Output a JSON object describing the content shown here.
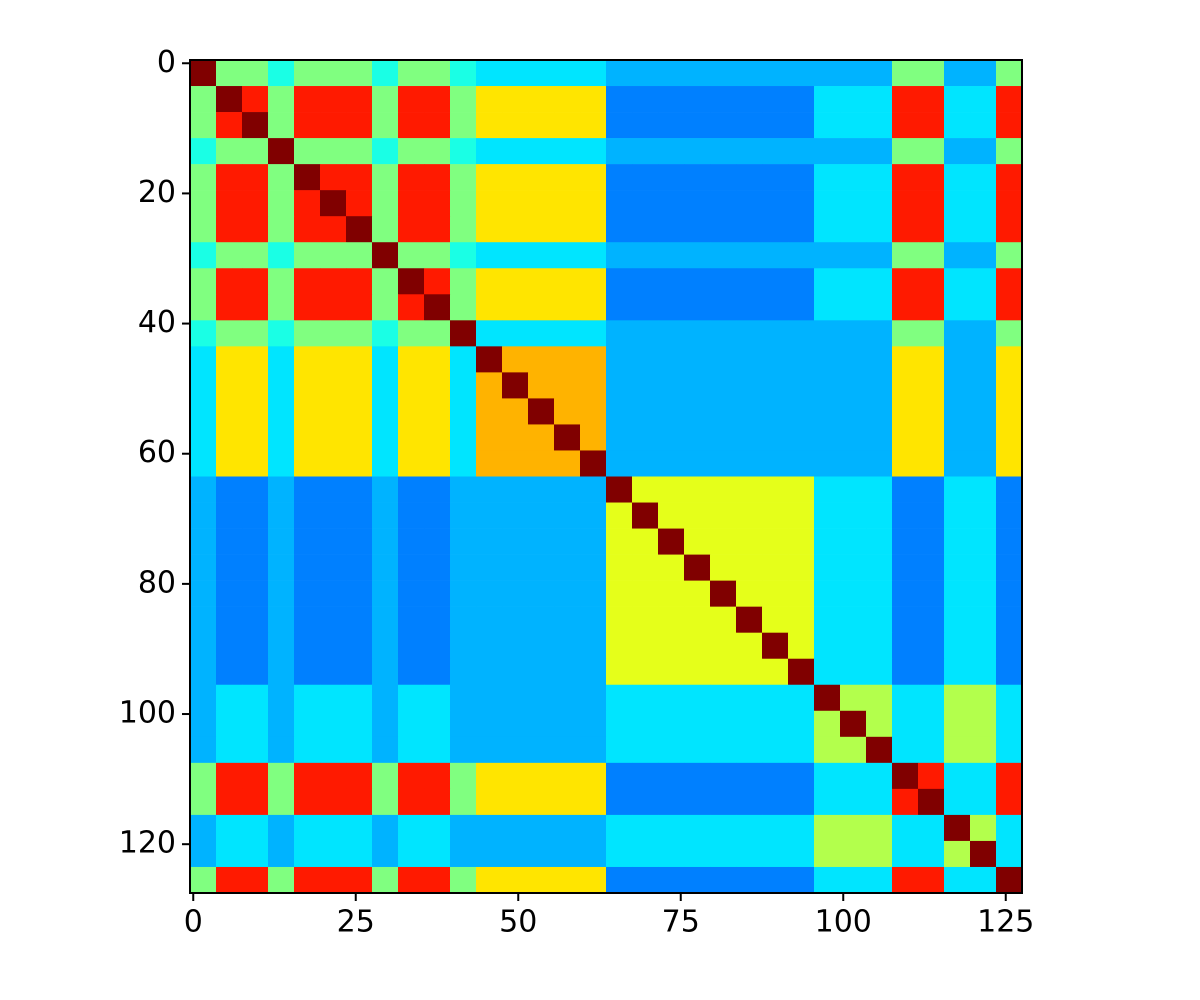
{
  "chart_data": {
    "type": "heatmap",
    "colormap": "jet",
    "vmin": 0,
    "vmax": 1,
    "xlim": [
      -0.5,
      127.5
    ],
    "ylim": [
      127.5,
      -0.5
    ],
    "xticks": [
      0,
      25,
      50,
      75,
      100,
      125
    ],
    "yticks": [
      0,
      20,
      40,
      60,
      80,
      100,
      120
    ],
    "z": [
      [
        1,
        0.5,
        0.5,
        0.4,
        0.5,
        0.5,
        0.5,
        0.4,
        0.5,
        0.5,
        0.4,
        0.35,
        0.35,
        0.35,
        0.35,
        0.35,
        0.3,
        0.3,
        0.3,
        0.3,
        0.3,
        0.3,
        0.3,
        0.3,
        0.3,
        0.3,
        0.3,
        0.5,
        0.5,
        0.3,
        0.3,
        0.5
      ],
      [
        0.5,
        1,
        0.85,
        0.5,
        0.85,
        0.85,
        0.85,
        0.5,
        0.85,
        0.85,
        0.5,
        0.65,
        0.65,
        0.65,
        0.65,
        0.65,
        0.25,
        0.25,
        0.25,
        0.25,
        0.25,
        0.25,
        0.25,
        0.25,
        0.35,
        0.35,
        0.35,
        0.85,
        0.85,
        0.35,
        0.35,
        0.85
      ],
      [
        0.5,
        0.85,
        1,
        0.5,
        0.85,
        0.85,
        0.85,
        0.5,
        0.85,
        0.85,
        0.5,
        0.65,
        0.65,
        0.65,
        0.65,
        0.65,
        0.25,
        0.25,
        0.25,
        0.25,
        0.25,
        0.25,
        0.25,
        0.25,
        0.35,
        0.35,
        0.35,
        0.85,
        0.85,
        0.35,
        0.35,
        0.85
      ],
      [
        0.4,
        0.5,
        0.5,
        1,
        0.5,
        0.5,
        0.5,
        0.4,
        0.5,
        0.5,
        0.4,
        0.35,
        0.35,
        0.35,
        0.35,
        0.35,
        0.3,
        0.3,
        0.3,
        0.3,
        0.3,
        0.3,
        0.3,
        0.3,
        0.3,
        0.3,
        0.3,
        0.5,
        0.5,
        0.3,
        0.3,
        0.5
      ],
      [
        0.5,
        0.85,
        0.85,
        0.5,
        1,
        0.85,
        0.85,
        0.5,
        0.85,
        0.85,
        0.5,
        0.65,
        0.65,
        0.65,
        0.65,
        0.65,
        0.25,
        0.25,
        0.25,
        0.25,
        0.25,
        0.25,
        0.25,
        0.25,
        0.35,
        0.35,
        0.35,
        0.85,
        0.85,
        0.35,
        0.35,
        0.85
      ],
      [
        0.5,
        0.85,
        0.85,
        0.5,
        0.85,
        1,
        0.85,
        0.5,
        0.85,
        0.85,
        0.5,
        0.65,
        0.65,
        0.65,
        0.65,
        0.65,
        0.25,
        0.25,
        0.25,
        0.25,
        0.25,
        0.25,
        0.25,
        0.25,
        0.35,
        0.35,
        0.35,
        0.85,
        0.85,
        0.35,
        0.35,
        0.85
      ],
      [
        0.5,
        0.85,
        0.85,
        0.5,
        0.85,
        0.85,
        1,
        0.5,
        0.85,
        0.85,
        0.5,
        0.65,
        0.65,
        0.65,
        0.65,
        0.65,
        0.25,
        0.25,
        0.25,
        0.25,
        0.25,
        0.25,
        0.25,
        0.25,
        0.35,
        0.35,
        0.35,
        0.85,
        0.85,
        0.35,
        0.35,
        0.85
      ],
      [
        0.4,
        0.5,
        0.5,
        0.4,
        0.5,
        0.5,
        0.5,
        1,
        0.5,
        0.5,
        0.4,
        0.35,
        0.35,
        0.35,
        0.35,
        0.35,
        0.3,
        0.3,
        0.3,
        0.3,
        0.3,
        0.3,
        0.3,
        0.3,
        0.3,
        0.3,
        0.3,
        0.5,
        0.5,
        0.3,
        0.3,
        0.5
      ],
      [
        0.5,
        0.85,
        0.85,
        0.5,
        0.85,
        0.85,
        0.85,
        0.5,
        1,
        0.85,
        0.5,
        0.65,
        0.65,
        0.65,
        0.65,
        0.65,
        0.25,
        0.25,
        0.25,
        0.25,
        0.25,
        0.25,
        0.25,
        0.25,
        0.35,
        0.35,
        0.35,
        0.85,
        0.85,
        0.35,
        0.35,
        0.85
      ],
      [
        0.5,
        0.85,
        0.85,
        0.5,
        0.85,
        0.85,
        0.85,
        0.5,
        0.85,
        1,
        0.5,
        0.65,
        0.65,
        0.65,
        0.65,
        0.65,
        0.25,
        0.25,
        0.25,
        0.25,
        0.25,
        0.25,
        0.25,
        0.25,
        0.35,
        0.35,
        0.35,
        0.85,
        0.85,
        0.35,
        0.35,
        0.85
      ],
      [
        0.4,
        0.5,
        0.5,
        0.4,
        0.5,
        0.5,
        0.5,
        0.4,
        0.5,
        0.5,
        1,
        0.35,
        0.35,
        0.35,
        0.35,
        0.35,
        0.3,
        0.3,
        0.3,
        0.3,
        0.3,
        0.3,
        0.3,
        0.3,
        0.3,
        0.3,
        0.3,
        0.5,
        0.5,
        0.3,
        0.3,
        0.5
      ],
      [
        0.35,
        0.65,
        0.65,
        0.35,
        0.65,
        0.65,
        0.65,
        0.35,
        0.65,
        0.65,
        0.35,
        1,
        0.7,
        0.7,
        0.7,
        0.7,
        0.3,
        0.3,
        0.3,
        0.3,
        0.3,
        0.3,
        0.3,
        0.3,
        0.3,
        0.3,
        0.3,
        0.65,
        0.65,
        0.3,
        0.3,
        0.65
      ],
      [
        0.35,
        0.65,
        0.65,
        0.35,
        0.65,
        0.65,
        0.65,
        0.35,
        0.65,
        0.65,
        0.35,
        0.7,
        1,
        0.7,
        0.7,
        0.7,
        0.3,
        0.3,
        0.3,
        0.3,
        0.3,
        0.3,
        0.3,
        0.3,
        0.3,
        0.3,
        0.3,
        0.65,
        0.65,
        0.3,
        0.3,
        0.65
      ],
      [
        0.35,
        0.65,
        0.65,
        0.35,
        0.65,
        0.65,
        0.65,
        0.35,
        0.65,
        0.65,
        0.35,
        0.7,
        0.7,
        1,
        0.7,
        0.7,
        0.3,
        0.3,
        0.3,
        0.3,
        0.3,
        0.3,
        0.3,
        0.3,
        0.3,
        0.3,
        0.3,
        0.65,
        0.65,
        0.3,
        0.3,
        0.65
      ],
      [
        0.35,
        0.65,
        0.65,
        0.35,
        0.65,
        0.65,
        0.65,
        0.35,
        0.65,
        0.65,
        0.35,
        0.7,
        0.7,
        0.7,
        1,
        0.7,
        0.3,
        0.3,
        0.3,
        0.3,
        0.3,
        0.3,
        0.3,
        0.3,
        0.3,
        0.3,
        0.3,
        0.65,
        0.65,
        0.3,
        0.3,
        0.65
      ],
      [
        0.35,
        0.65,
        0.65,
        0.35,
        0.65,
        0.65,
        0.65,
        0.35,
        0.65,
        0.65,
        0.35,
        0.7,
        0.7,
        0.7,
        0.7,
        1,
        0.3,
        0.3,
        0.3,
        0.3,
        0.3,
        0.3,
        0.3,
        0.3,
        0.3,
        0.3,
        0.3,
        0.65,
        0.65,
        0.3,
        0.3,
        0.65
      ],
      [
        0.3,
        0.25,
        0.25,
        0.3,
        0.25,
        0.25,
        0.25,
        0.3,
        0.25,
        0.25,
        0.3,
        0.3,
        0.3,
        0.3,
        0.3,
        0.3,
        1,
        0.6,
        0.6,
        0.6,
        0.6,
        0.6,
        0.6,
        0.6,
        0.35,
        0.35,
        0.35,
        0.25,
        0.25,
        0.35,
        0.35,
        0.25
      ],
      [
        0.3,
        0.25,
        0.25,
        0.3,
        0.25,
        0.25,
        0.25,
        0.3,
        0.25,
        0.25,
        0.3,
        0.3,
        0.3,
        0.3,
        0.3,
        0.3,
        0.6,
        1,
        0.6,
        0.6,
        0.6,
        0.6,
        0.6,
        0.6,
        0.35,
        0.35,
        0.35,
        0.25,
        0.25,
        0.35,
        0.35,
        0.25
      ],
      [
        0.3,
        0.25,
        0.25,
        0.3,
        0.25,
        0.25,
        0.25,
        0.3,
        0.25,
        0.25,
        0.3,
        0.3,
        0.3,
        0.3,
        0.3,
        0.3,
        0.6,
        0.6,
        1,
        0.6,
        0.6,
        0.6,
        0.6,
        0.6,
        0.35,
        0.35,
        0.35,
        0.25,
        0.25,
        0.35,
        0.35,
        0.25
      ],
      [
        0.3,
        0.25,
        0.25,
        0.3,
        0.25,
        0.25,
        0.25,
        0.3,
        0.25,
        0.25,
        0.3,
        0.3,
        0.3,
        0.3,
        0.3,
        0.3,
        0.6,
        0.6,
        0.6,
        1,
        0.6,
        0.6,
        0.6,
        0.6,
        0.35,
        0.35,
        0.35,
        0.25,
        0.25,
        0.35,
        0.35,
        0.25
      ],
      [
        0.3,
        0.25,
        0.25,
        0.3,
        0.25,
        0.25,
        0.25,
        0.3,
        0.25,
        0.25,
        0.3,
        0.3,
        0.3,
        0.3,
        0.3,
        0.3,
        0.6,
        0.6,
        0.6,
        0.6,
        1,
        0.6,
        0.6,
        0.6,
        0.35,
        0.35,
        0.35,
        0.25,
        0.25,
        0.35,
        0.35,
        0.25
      ],
      [
        0.3,
        0.25,
        0.25,
        0.3,
        0.25,
        0.25,
        0.25,
        0.3,
        0.25,
        0.25,
        0.3,
        0.3,
        0.3,
        0.3,
        0.3,
        0.3,
        0.6,
        0.6,
        0.6,
        0.6,
        0.6,
        1,
        0.6,
        0.6,
        0.35,
        0.35,
        0.35,
        0.25,
        0.25,
        0.35,
        0.35,
        0.25
      ],
      [
        0.3,
        0.25,
        0.25,
        0.3,
        0.25,
        0.25,
        0.25,
        0.3,
        0.25,
        0.25,
        0.3,
        0.3,
        0.3,
        0.3,
        0.3,
        0.3,
        0.6,
        0.6,
        0.6,
        0.6,
        0.6,
        0.6,
        1,
        0.6,
        0.35,
        0.35,
        0.35,
        0.25,
        0.25,
        0.35,
        0.35,
        0.25
      ],
      [
        0.3,
        0.25,
        0.25,
        0.3,
        0.25,
        0.25,
        0.25,
        0.3,
        0.25,
        0.25,
        0.3,
        0.3,
        0.3,
        0.3,
        0.3,
        0.3,
        0.6,
        0.6,
        0.6,
        0.6,
        0.6,
        0.6,
        0.6,
        1,
        0.35,
        0.35,
        0.35,
        0.25,
        0.25,
        0.35,
        0.35,
        0.25
      ],
      [
        0.3,
        0.35,
        0.35,
        0.3,
        0.35,
        0.35,
        0.35,
        0.3,
        0.35,
        0.35,
        0.3,
        0.3,
        0.3,
        0.3,
        0.3,
        0.3,
        0.35,
        0.35,
        0.35,
        0.35,
        0.35,
        0.35,
        0.35,
        0.35,
        1,
        0.55,
        0.55,
        0.35,
        0.35,
        0.55,
        0.55,
        0.35
      ],
      [
        0.3,
        0.35,
        0.35,
        0.3,
        0.35,
        0.35,
        0.35,
        0.3,
        0.35,
        0.35,
        0.3,
        0.3,
        0.3,
        0.3,
        0.3,
        0.3,
        0.35,
        0.35,
        0.35,
        0.35,
        0.35,
        0.35,
        0.35,
        0.35,
        0.55,
        1,
        0.55,
        0.35,
        0.35,
        0.55,
        0.55,
        0.35
      ],
      [
        0.3,
        0.35,
        0.35,
        0.3,
        0.35,
        0.35,
        0.35,
        0.3,
        0.35,
        0.35,
        0.3,
        0.3,
        0.3,
        0.3,
        0.3,
        0.3,
        0.35,
        0.35,
        0.35,
        0.35,
        0.35,
        0.35,
        0.35,
        0.35,
        0.55,
        0.55,
        1,
        0.35,
        0.35,
        0.55,
        0.55,
        0.35
      ],
      [
        0.5,
        0.85,
        0.85,
        0.5,
        0.85,
        0.85,
        0.85,
        0.5,
        0.85,
        0.85,
        0.5,
        0.65,
        0.65,
        0.65,
        0.65,
        0.65,
        0.25,
        0.25,
        0.25,
        0.25,
        0.25,
        0.25,
        0.25,
        0.25,
        0.35,
        0.35,
        0.35,
        1,
        0.85,
        0.35,
        0.35,
        0.85
      ],
      [
        0.5,
        0.85,
        0.85,
        0.5,
        0.85,
        0.85,
        0.85,
        0.5,
        0.85,
        0.85,
        0.5,
        0.65,
        0.65,
        0.65,
        0.65,
        0.65,
        0.25,
        0.25,
        0.25,
        0.25,
        0.25,
        0.25,
        0.25,
        0.25,
        0.35,
        0.35,
        0.35,
        0.85,
        1,
        0.35,
        0.35,
        0.85
      ],
      [
        0.3,
        0.35,
        0.35,
        0.3,
        0.35,
        0.35,
        0.35,
        0.3,
        0.35,
        0.35,
        0.3,
        0.3,
        0.3,
        0.3,
        0.3,
        0.3,
        0.35,
        0.35,
        0.35,
        0.35,
        0.35,
        0.35,
        0.35,
        0.35,
        0.55,
        0.55,
        0.55,
        0.35,
        0.35,
        1,
        0.55,
        0.35
      ],
      [
        0.3,
        0.35,
        0.35,
        0.3,
        0.35,
        0.35,
        0.35,
        0.3,
        0.35,
        0.35,
        0.3,
        0.3,
        0.3,
        0.3,
        0.3,
        0.3,
        0.35,
        0.35,
        0.35,
        0.35,
        0.35,
        0.35,
        0.35,
        0.35,
        0.55,
        0.55,
        0.55,
        0.35,
        0.35,
        0.55,
        1,
        0.35
      ],
      [
        0.5,
        0.85,
        0.85,
        0.5,
        0.85,
        0.85,
        0.85,
        0.5,
        0.85,
        0.85,
        0.5,
        0.65,
        0.65,
        0.65,
        0.65,
        0.65,
        0.25,
        0.25,
        0.25,
        0.25,
        0.25,
        0.25,
        0.25,
        0.25,
        0.35,
        0.35,
        0.35,
        0.85,
        0.85,
        0.35,
        0.35,
        1
      ]
    ]
  }
}
